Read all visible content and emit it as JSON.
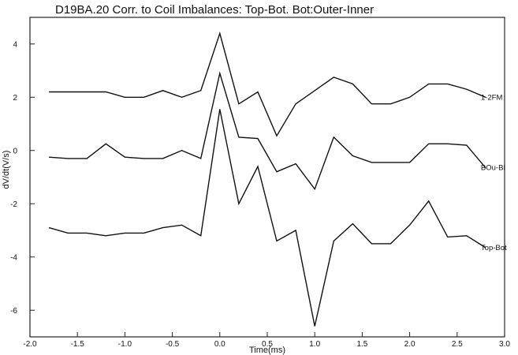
{
  "chart_data": {
    "type": "line",
    "title": "D19BA.20 Corr. to Coil Imbalances: Top-Bot. Bot:Outer-Inner",
    "xlabel": "Time(ms)",
    "ylabel": "dV/dt(V/s)",
    "xlim": [
      -2.0,
      3.0
    ],
    "ylim": [
      -7,
      5
    ],
    "x_ticks": [
      "-2.0",
      "-1.5",
      "-1.0",
      "-0.5",
      "0.0",
      "0.5",
      "1.0",
      "1.5",
      "2.0",
      "2.5",
      "3.0"
    ],
    "y_ticks": [
      "4",
      "2",
      "0",
      "-2",
      "-4",
      "-6"
    ],
    "grid": false,
    "legend": "inline labels at right end of each series",
    "series": [
      {
        "name": "1-2FM",
        "x": [
          -1.8,
          -1.6,
          -1.4,
          -1.2,
          -1.0,
          -0.8,
          -0.6,
          -0.4,
          -0.2,
          0.0,
          0.2,
          0.4,
          0.6,
          0.8,
          1.0,
          1.2,
          1.4,
          1.6,
          1.8,
          2.0,
          2.2,
          2.4,
          2.6,
          2.8
        ],
        "y": [
          2.2,
          2.2,
          2.2,
          2.2,
          2.0,
          2.0,
          2.25,
          2.0,
          2.25,
          4.4,
          1.75,
          2.2,
          0.55,
          1.75,
          2.25,
          2.75,
          2.5,
          1.75,
          1.75,
          2.0,
          2.5,
          2.5,
          2.3,
          2.0
        ]
      },
      {
        "name": "BOu-BI",
        "x": [
          -1.8,
          -1.6,
          -1.4,
          -1.2,
          -1.0,
          -0.8,
          -0.6,
          -0.4,
          -0.2,
          0.0,
          0.2,
          0.4,
          0.6,
          0.8,
          1.0,
          1.2,
          1.4,
          1.6,
          1.8,
          2.0,
          2.2,
          2.4,
          2.6,
          2.8
        ],
        "y": [
          -0.25,
          -0.3,
          -0.3,
          0.25,
          -0.25,
          -0.3,
          -0.3,
          0.0,
          -0.3,
          2.9,
          0.5,
          0.45,
          -0.8,
          -0.5,
          -1.45,
          0.5,
          -0.2,
          -0.45,
          -0.45,
          -0.45,
          0.25,
          0.25,
          0.2,
          -0.65
        ]
      },
      {
        "name": "Top-Bot",
        "x": [
          -1.8,
          -1.6,
          -1.4,
          -1.2,
          -1.0,
          -0.8,
          -0.6,
          -0.4,
          -0.2,
          0.0,
          0.2,
          0.4,
          0.6,
          0.8,
          1.0,
          1.2,
          1.4,
          1.6,
          1.8,
          2.0,
          2.2,
          2.4,
          2.6,
          2.8
        ],
        "y": [
          -2.9,
          -3.1,
          -3.1,
          -3.2,
          -3.1,
          -3.1,
          -2.9,
          -2.8,
          -3.2,
          1.55,
          -2.0,
          -0.6,
          -3.4,
          -3.0,
          -6.6,
          -3.4,
          -2.75,
          -3.5,
          -3.5,
          -2.8,
          -1.9,
          -3.25,
          -3.2,
          -3.65
        ]
      }
    ]
  }
}
